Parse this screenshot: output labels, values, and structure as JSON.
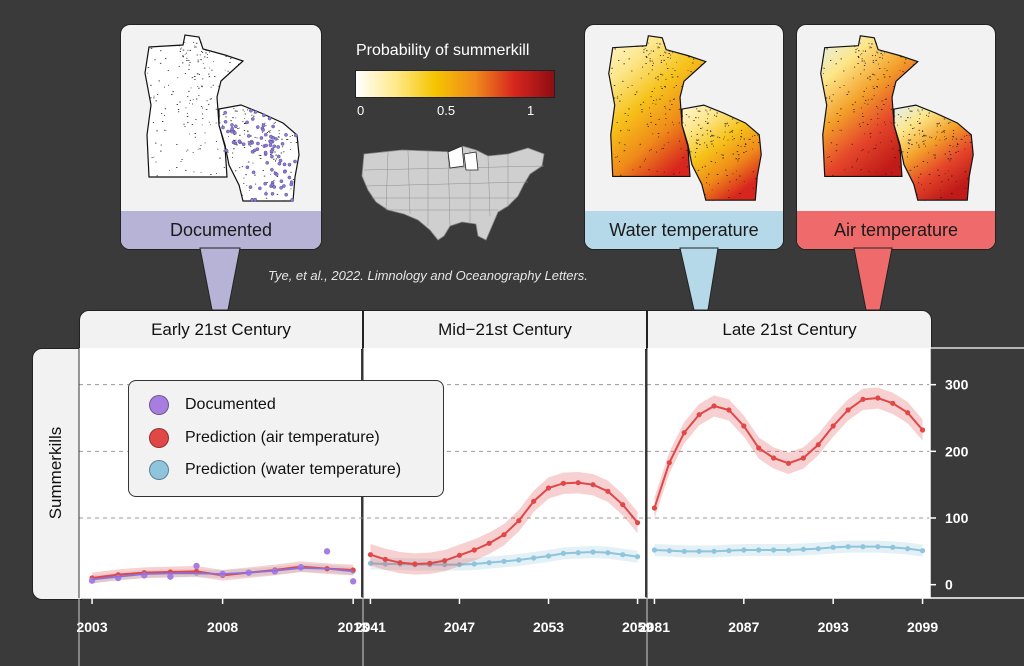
{
  "colorbar": {
    "title": "Probability of summerkill",
    "ticks": [
      "0",
      "0.5",
      "1"
    ],
    "stops": [
      "#ffffff",
      "#ffe98a",
      "#f5c400",
      "#f08a1c",
      "#d7261e",
      "#8e0d12"
    ]
  },
  "maps": [
    {
      "label": "Documented",
      "color": "#b7b3d6"
    },
    {
      "label": "Water temperature",
      "color": "#b6d9ea"
    },
    {
      "label": "Air temperature",
      "color": "#ef6b6b"
    }
  ],
  "citation": "Tye, et al., 2022. Limnology and Oceanography Letters.",
  "chart_data": {
    "type": "line",
    "ylabel": "Summerkills",
    "y_ticks": [
      0,
      100,
      200,
      300
    ],
    "ylim": [
      -20,
      355
    ],
    "legend": [
      {
        "label": "Documented",
        "color": "#a77ee0"
      },
      {
        "label": "Prediction (air temperature)",
        "color": "#e04848"
      },
      {
        "label": "Prediction (water temperature)",
        "color": "#8fc4dd"
      }
    ],
    "facets": [
      {
        "title": "Early 21st Century",
        "xlim": [
          2002.5,
          2013.3
        ],
        "x_ticks": [
          2003,
          2008,
          2013
        ],
        "x": [
          2003,
          2004,
          2005,
          2006,
          2007,
          2008,
          2009,
          2010,
          2011,
          2012,
          2013
        ],
        "documented": [
          6,
          10,
          14,
          12,
          28,
          16,
          18,
          20,
          26,
          50,
          5
        ],
        "air": [
          10,
          15,
          18,
          19,
          20,
          14,
          18,
          22,
          27,
          24,
          22
        ],
        "water": [
          8,
          12,
          16,
          17,
          17,
          16,
          18,
          21,
          25,
          24,
          20
        ]
      },
      {
        "title": "Mid−21st Century",
        "xlim": [
          2040.5,
          2059.5
        ],
        "x_ticks": [
          2041,
          2047,
          2053,
          2059
        ],
        "x": [
          2041,
          2042,
          2043,
          2044,
          2045,
          2046,
          2047,
          2048,
          2049,
          2050,
          2051,
          2052,
          2053,
          2054,
          2055,
          2056,
          2057,
          2058,
          2059
        ],
        "air": [
          45,
          38,
          33,
          31,
          32,
          36,
          44,
          52,
          62,
          75,
          96,
          125,
          145,
          152,
          153,
          150,
          140,
          120,
          93
        ],
        "water": [
          32,
          31,
          31,
          30,
          30,
          30,
          30,
          31,
          33,
          35,
          37,
          40,
          43,
          47,
          48,
          49,
          48,
          45,
          42
        ]
      },
      {
        "title": "Late 21st Century",
        "xlim": [
          2080.5,
          2099.5
        ],
        "x_ticks": [
          2081,
          2087,
          2093,
          2099
        ],
        "x": [
          2081,
          2082,
          2083,
          2084,
          2085,
          2086,
          2087,
          2088,
          2089,
          2090,
          2091,
          2092,
          2093,
          2094,
          2095,
          2096,
          2097,
          2098,
          2099
        ],
        "air": [
          115,
          183,
          228,
          255,
          268,
          262,
          238,
          205,
          190,
          182,
          190,
          210,
          238,
          262,
          278,
          280,
          272,
          258,
          232
        ],
        "water": [
          52,
          51,
          50,
          50,
          50,
          51,
          52,
          52,
          52,
          52,
          53,
          54,
          56,
          57,
          57,
          57,
          56,
          54,
          51
        ]
      }
    ]
  }
}
